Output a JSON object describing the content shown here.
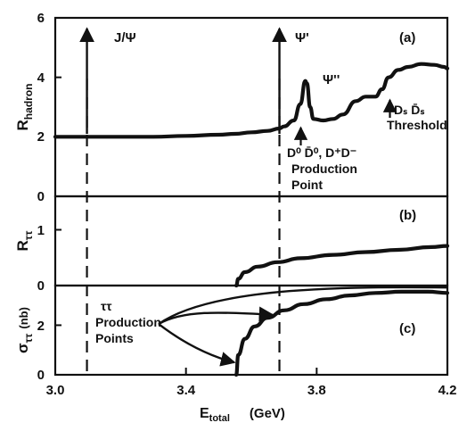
{
  "chart_data": [
    {
      "id": "a",
      "type": "line",
      "panel_label": "(a)",
      "ylabel": "R",
      "ylabel_sub": "hadron",
      "ylim": [
        0,
        6
      ],
      "yticks": [
        "0",
        "2",
        "4",
        "6"
      ],
      "xlim": [
        3.0,
        4.2
      ],
      "series": [
        {
          "x": [
            3.0,
            3.1,
            3.2,
            3.3,
            3.4,
            3.5,
            3.55,
            3.6,
            3.65,
            3.686,
            3.7,
            3.73,
            3.75,
            3.765,
            3.77,
            3.78,
            3.79,
            3.82,
            3.85,
            3.88,
            3.92,
            3.95,
            3.98,
            4.0,
            4.02,
            4.05,
            4.08,
            4.12,
            4.16,
            4.19,
            4.2
          ],
          "y": [
            2.0,
            2.0,
            2.0,
            2.0,
            2.03,
            2.07,
            2.1,
            2.15,
            2.2,
            2.28,
            2.35,
            2.55,
            3.1,
            3.88,
            3.8,
            3.0,
            2.6,
            2.55,
            2.6,
            2.75,
            3.2,
            3.35,
            3.35,
            3.6,
            4.0,
            4.25,
            4.35,
            4.45,
            4.42,
            4.35,
            4.3
          ]
        }
      ],
      "annotations": [
        {
          "text": "J/Ψ",
          "x": 3.097
        },
        {
          "text": "Ψ'",
          "x": 3.686
        },
        {
          "text": "Ψ''",
          "x": 3.77
        },
        {
          "text": "D⁰ D̄⁰,  D⁺D⁻",
          "x": 3.73
        },
        {
          "text": "Production",
          "x": 3.73
        },
        {
          "text": "Point",
          "x": 3.73
        },
        {
          "text": "Dₛ D̄ₛ",
          "x": 3.94
        },
        {
          "text": "Threshold",
          "x": 3.94
        }
      ]
    },
    {
      "id": "b",
      "type": "line",
      "panel_label": "(b)",
      "ylabel": "R",
      "ylabel_sub": "ττ",
      "ylim": [
        0,
        1.6
      ],
      "yticks": [
        "0",
        "1"
      ],
      "xlim": [
        3.0,
        4.2
      ],
      "series": [
        {
          "x": [
            3.554,
            3.56,
            3.58,
            3.62,
            3.68,
            3.75,
            3.85,
            3.95,
            4.05,
            4.15,
            4.2
          ],
          "y": [
            0,
            0.12,
            0.24,
            0.34,
            0.42,
            0.49,
            0.55,
            0.6,
            0.64,
            0.69,
            0.71
          ]
        }
      ]
    },
    {
      "id": "c",
      "type": "line",
      "panel_label": "(c)",
      "ylabel": "σ",
      "ylabel_sub": "ττ",
      "ylabel_unit": "(nb)",
      "ylim": [
        0,
        3.6
      ],
      "yticks": [
        "0",
        "2"
      ],
      "xlim": [
        3.0,
        4.2
      ],
      "xticks": [
        "3.0",
        "3.4",
        "3.8",
        "4.2"
      ],
      "xlabel": "E",
      "xlabel_sub": "total",
      "xlabel_unit": "(GeV)",
      "series": [
        {
          "x": [
            3.554,
            3.56,
            3.58,
            3.61,
            3.65,
            3.7,
            3.76,
            3.83,
            3.9,
            3.98,
            4.06,
            4.14,
            4.2
          ],
          "y": [
            0,
            0.8,
            1.45,
            1.95,
            2.3,
            2.6,
            2.85,
            3.05,
            3.2,
            3.3,
            3.35,
            3.35,
            3.3
          ]
        }
      ],
      "annotations": [
        {
          "text": "ττ"
        },
        {
          "text": "Production"
        },
        {
          "text": "Points"
        }
      ]
    }
  ]
}
